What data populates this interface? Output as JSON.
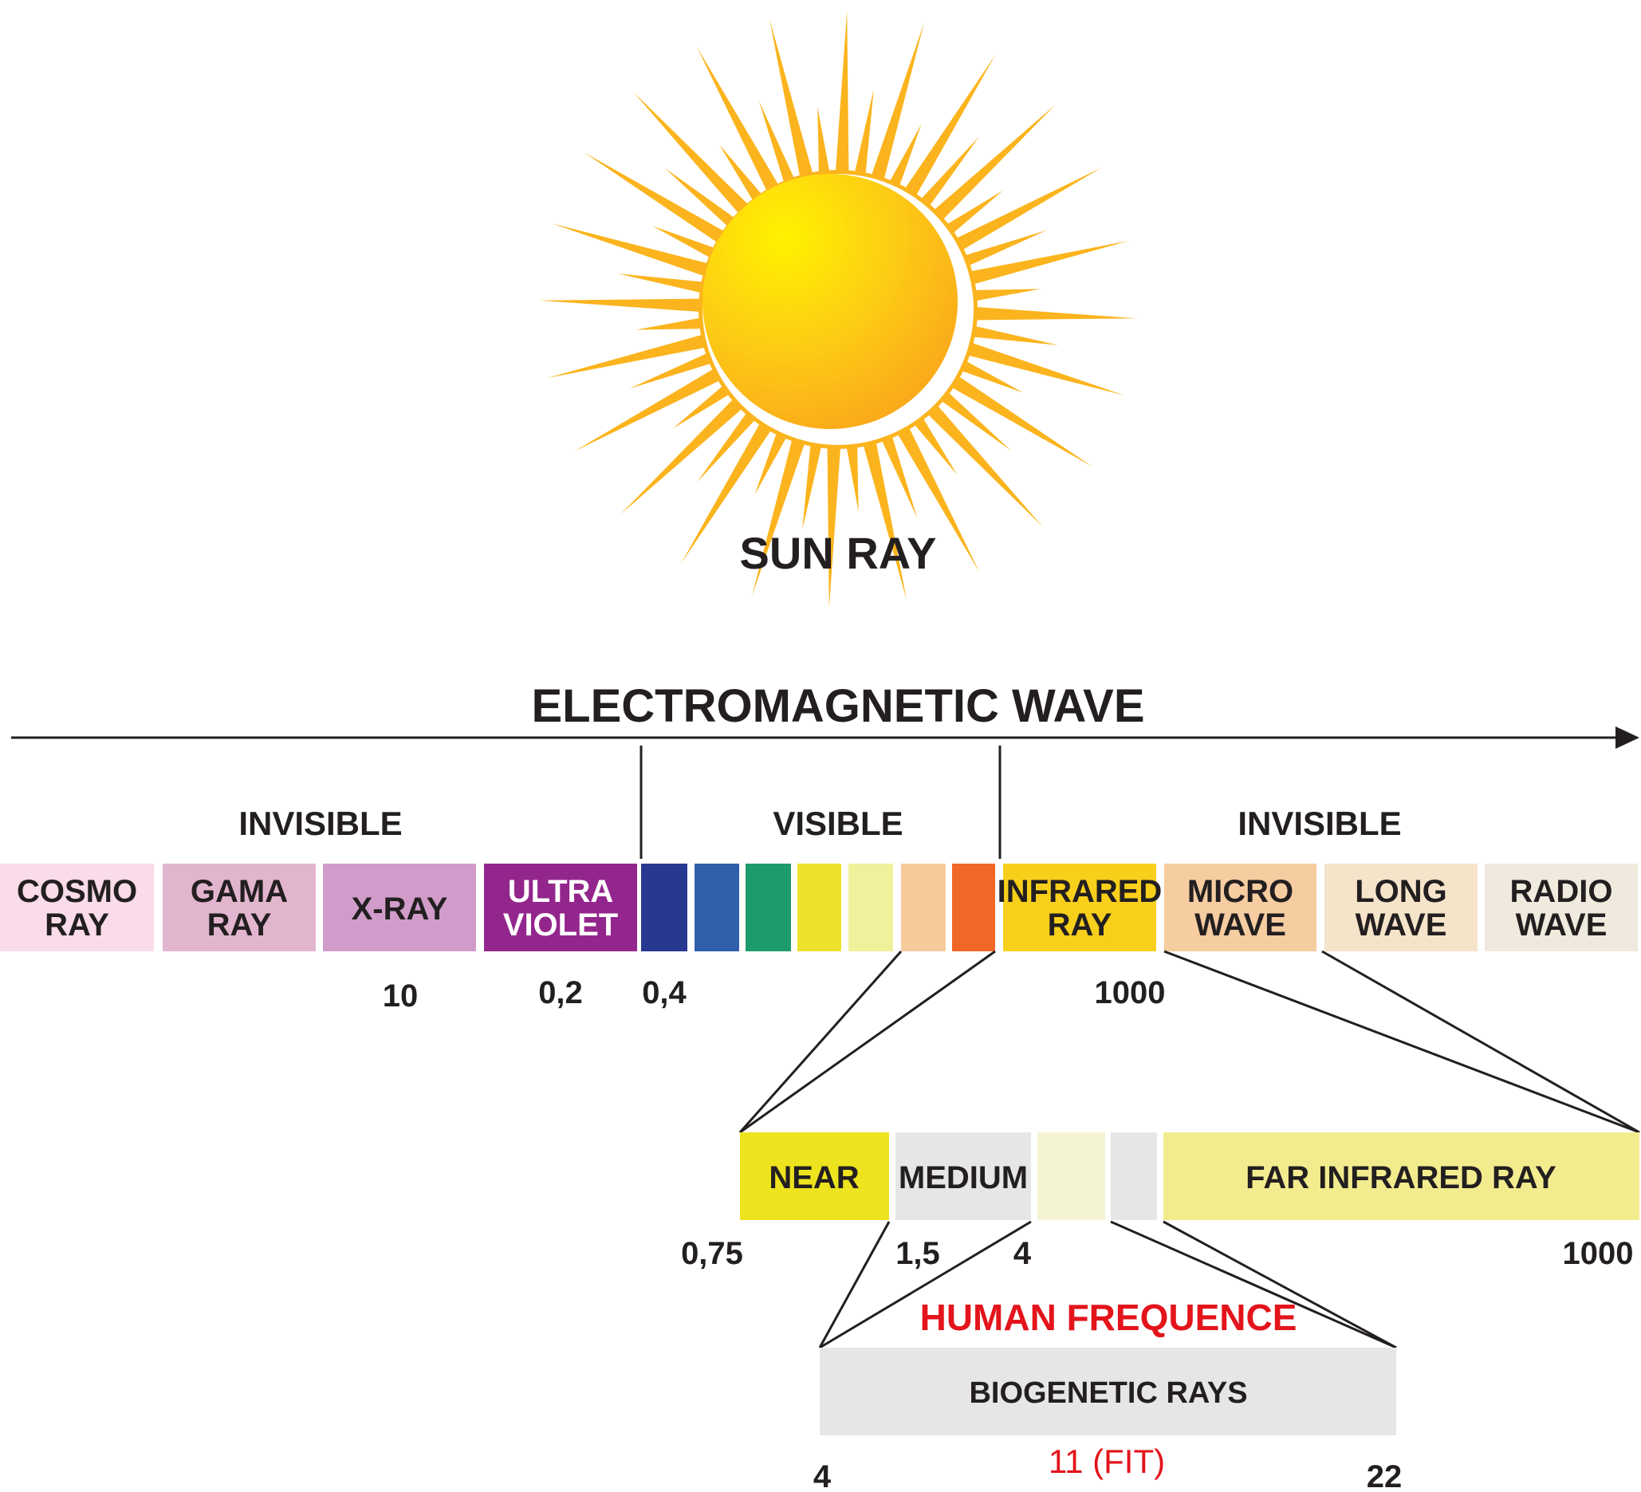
{
  "sun": {
    "label": "SUN RAY"
  },
  "spectrum": {
    "title": "ELECTROMAGNETIC WAVE",
    "regions": [
      {
        "id": "invisible-left",
        "label": "INVISIBLE"
      },
      {
        "id": "visible",
        "label": "VISIBLE"
      },
      {
        "id": "invisible-right",
        "label": "INVISIBLE"
      }
    ],
    "bands": [
      {
        "id": "cosmo-ray",
        "lines": [
          "COSMO",
          "RAY"
        ],
        "color": "#f9dbe9",
        "text_color": "#231f20"
      },
      {
        "id": "gama-ray",
        "lines": [
          "GAMA",
          "RAY"
        ],
        "color": "#e2b5cf",
        "text_color": "#231f20"
      },
      {
        "id": "x-ray",
        "lines": [
          "X-RAY"
        ],
        "color": "#d19cca",
        "text_color": "#231f20"
      },
      {
        "id": "ultra-violet",
        "lines": [
          "ULTRA",
          "VIOLET"
        ],
        "color": "#93268d",
        "text_color": "#ffffff"
      },
      {
        "id": "indigo",
        "lines": [],
        "color": "#283891",
        "text_color": "#231f20"
      },
      {
        "id": "blue",
        "lines": [],
        "color": "#3160aa",
        "text_color": "#231f20"
      },
      {
        "id": "green",
        "lines": [],
        "color": "#1e9b6c",
        "text_color": "#231f20"
      },
      {
        "id": "yellow",
        "lines": [],
        "color": "#eee12c",
        "text_color": "#231f20"
      },
      {
        "id": "pale-yellow",
        "lines": [],
        "color": "#f1f19b",
        "text_color": "#231f20"
      },
      {
        "id": "peach",
        "lines": [],
        "color": "#f7ca9c",
        "text_color": "#231f20"
      },
      {
        "id": "orange",
        "lines": [],
        "color": "#f06726",
        "text_color": "#231f20"
      },
      {
        "id": "infrared-ray",
        "lines": [
          "INFRARED",
          "RAY"
        ],
        "color": "#f8cf1b",
        "text_color": "#231f20"
      },
      {
        "id": "micro-wave",
        "lines": [
          "MICRO",
          "WAVE"
        ],
        "color": "#f6cca1",
        "text_color": "#231f20"
      },
      {
        "id": "long-wave",
        "lines": [
          "LONG",
          "WAVE"
        ],
        "color": "#f6e4ca",
        "text_color": "#231f20"
      },
      {
        "id": "radio-wave",
        "lines": [
          "RADIO",
          "WAVE"
        ],
        "color": "#efeadd",
        "text_color": "#231f20"
      }
    ],
    "values": [
      {
        "id": "x-ray",
        "label": "10"
      },
      {
        "id": "ultra-violet",
        "label": "0,2"
      },
      {
        "id": "visible-start",
        "label": "0,4"
      },
      {
        "id": "infrared-end",
        "label": "1000"
      }
    ]
  },
  "infrared_detail": {
    "bands": [
      {
        "id": "near",
        "label": "NEAR",
        "color": "#ede31e"
      },
      {
        "id": "medium",
        "label": "MEDIUM",
        "color": "#e6e6e6"
      },
      {
        "id": "pale-1",
        "label": "",
        "color": "#f4f4d4"
      },
      {
        "id": "grey-1",
        "label": "",
        "color": "#e6e6e6"
      },
      {
        "id": "far-infrared-ray",
        "label": "FAR INFRARED RAY",
        "color": "#f3ec8f"
      }
    ],
    "values": [
      "0,75",
      "1,5",
      "4",
      "1000"
    ]
  },
  "human": {
    "title": "HUMAN FREQUENCE",
    "band_label": "BIOGENETIC RAYS",
    "band_color": "#e6e6e6",
    "values": {
      "start": "4",
      "fit": "11 (FIT)",
      "end": "22"
    },
    "accent": "#e3141b"
  }
}
